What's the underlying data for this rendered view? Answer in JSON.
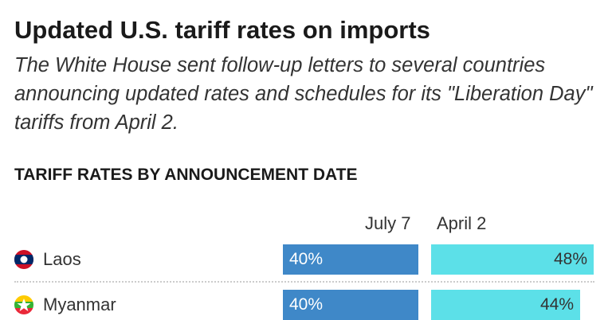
{
  "chart_data": {
    "type": "bar",
    "title": "Updated U.S. tariff rates on imports",
    "subtitle": "The White House sent follow-up letters to several countries announcing updated rates and schedules for its \"Liberation Day\" tariffs from April 2.",
    "section_title": "TARIFF RATES BY ANNOUNCEMENT DATE",
    "categories": [
      "Laos",
      "Myanmar"
    ],
    "series": [
      {
        "name": "July 7",
        "values": [
          40,
          40
        ],
        "labels": [
          "40%",
          "40%"
        ],
        "color": "#3f88c8"
      },
      {
        "name": "April 2",
        "values": [
          48,
          44
        ],
        "labels": [
          "48%",
          "44%"
        ],
        "color": "#5ce0e8"
      }
    ],
    "flags": [
      "laos-flag-icon",
      "myanmar-flag-icon"
    ]
  }
}
